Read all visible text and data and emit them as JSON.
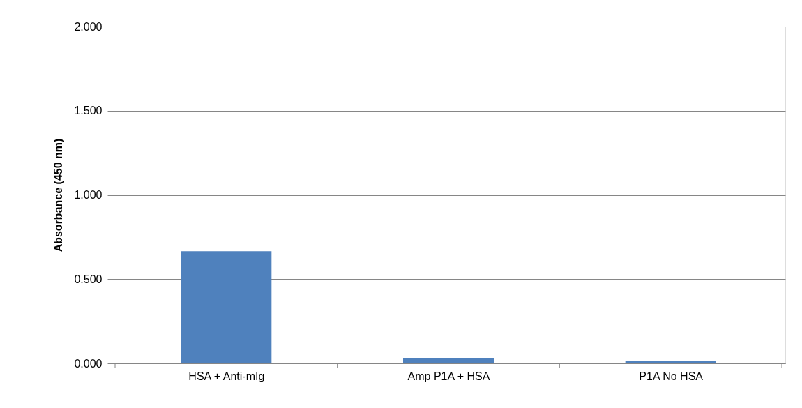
{
  "chart_data": {
    "type": "bar",
    "ylabel": "Absorbance (450 nm)",
    "categories": [
      "HSA  + Anti-mIg",
      "Amp P1A + HSA",
      "P1A No HSA"
    ],
    "values": [
      0.666,
      0.029,
      0.012
    ],
    "color": "#4f81bd",
    "ylim": [
      0,
      2
    ],
    "yticks": [
      {
        "value": 0,
        "label": "0.000"
      },
      {
        "value": 0.5,
        "label": "0.500"
      },
      {
        "value": 1,
        "label": "1.000"
      },
      {
        "value": 1.5,
        "label": "1.500"
      },
      {
        "value": 2,
        "label": "2.000"
      }
    ],
    "grid": "y"
  }
}
